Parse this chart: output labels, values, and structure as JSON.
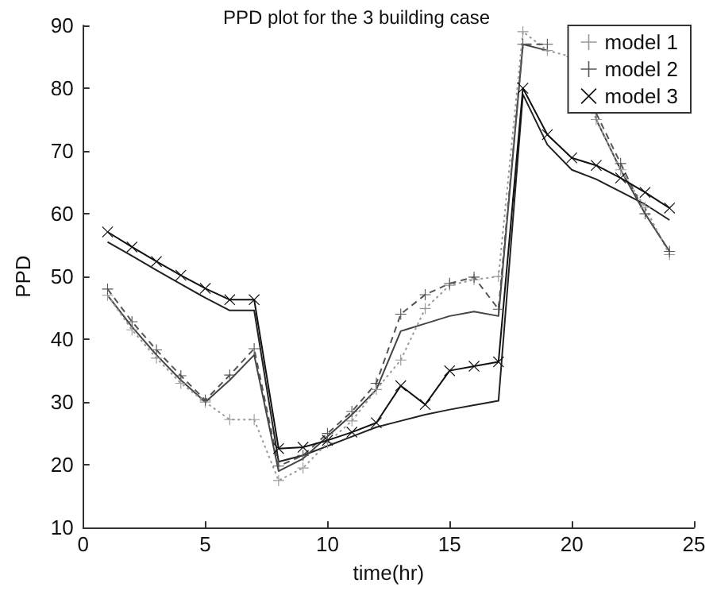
{
  "chart_data": {
    "type": "line",
    "title": "PPD plot for the 3 building case",
    "xlabel": "time(hr)",
    "ylabel": "PPD",
    "xlim": [
      0,
      25
    ],
    "xticks": [
      0,
      5,
      10,
      15,
      20,
      25
    ],
    "ylim": [
      10,
      90
    ],
    "yticks": [
      10,
      20,
      30,
      40,
      50,
      60,
      70,
      80,
      90
    ],
    "grid": false,
    "legend": "top right",
    "x": [
      1,
      2,
      3,
      4,
      5,
      6,
      7,
      8,
      9,
      10,
      11,
      12,
      13,
      14,
      15,
      16,
      17,
      18,
      19,
      20,
      21,
      22,
      23,
      24
    ],
    "series": [
      {
        "color": "#222222",
        "marker": "none",
        "line_style": "solid",
        "values": [
          55.5,
          53.3,
          51,
          48.8,
          46.6,
          44.6,
          44.6,
          20.5,
          21.5,
          23,
          24.5,
          26,
          27,
          28,
          28.8,
          29.5,
          30.2,
          79,
          71,
          67,
          65.5,
          63.5,
          61.5,
          59
        ]
      },
      {
        "color": "#444444",
        "marker": "none",
        "line_style": "solid",
        "values": [
          47,
          42,
          37.5,
          33.5,
          30,
          33.5,
          37.5,
          19,
          21,
          24.5,
          28,
          32,
          41.3,
          42.5,
          43.7,
          44.4,
          43.7,
          87,
          86,
          null,
          75,
          67,
          60,
          54
        ]
      },
      {
        "name": "model 1",
        "color": "#999999",
        "marker": "cross",
        "line_style": "dotted",
        "values": [
          47,
          41.5,
          37,
          33,
          30,
          27.2,
          27.2,
          17.5,
          19.5,
          23.5,
          27,
          32,
          36.7,
          44.9,
          48.6,
          49.5,
          50,
          89,
          86,
          85,
          75,
          67,
          61,
          53.5
        ]
      },
      {
        "name": "model 2",
        "color": "#555555",
        "marker": "cross",
        "line_style": "dashed",
        "values": [
          48,
          42.8,
          38.3,
          34.2,
          30.3,
          34.3,
          38.5,
          19.8,
          21.5,
          25,
          28.5,
          33,
          44,
          47.1,
          48.9,
          49.9,
          44.8,
          87,
          87,
          null,
          76,
          68,
          60,
          54
        ]
      },
      {
        "name": "model 3",
        "color": "#111111",
        "marker": "x",
        "line_style": "solid",
        "values": [
          57.1,
          54.7,
          52.4,
          50.2,
          48.1,
          46.3,
          46.3,
          22.6,
          22.8,
          23.9,
          25.2,
          26.7,
          32.6,
          29.6,
          35,
          35.7,
          36.4,
          80,
          72.6,
          68.9,
          67.7,
          65.7,
          63.4,
          60.9
        ]
      }
    ]
  }
}
